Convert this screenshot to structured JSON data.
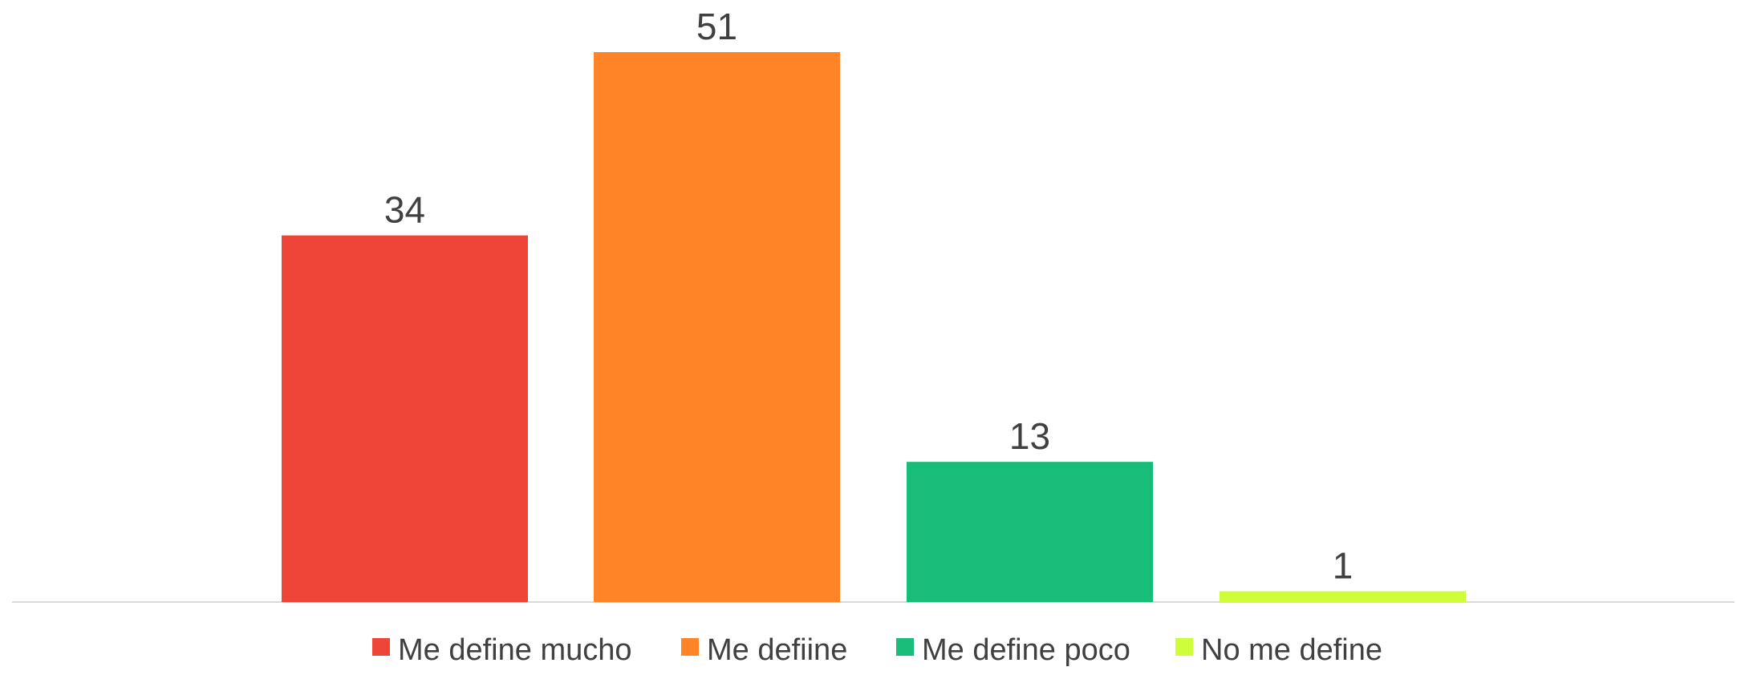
{
  "chart_data": {
    "type": "bar",
    "categories": [
      "Me define mucho",
      "Me defiine",
      "Me define poco",
      "No me define"
    ],
    "values": [
      34,
      51,
      13,
      1
    ],
    "colors": [
      "#ee4539",
      "#fe8427",
      "#17bd78",
      "#cefd3b"
    ],
    "value_labels": [
      "34",
      "51",
      "13",
      "1"
    ],
    "legend": {
      "position": "bottom",
      "entries": [
        "Me define mucho",
        "Me defiine",
        "Me define poco",
        "No me define"
      ]
    },
    "title": "",
    "xlabel": "",
    "ylabel": "",
    "ylim": [
      0,
      51
    ],
    "grid": false,
    "axis_color": "#d9d9d9"
  }
}
